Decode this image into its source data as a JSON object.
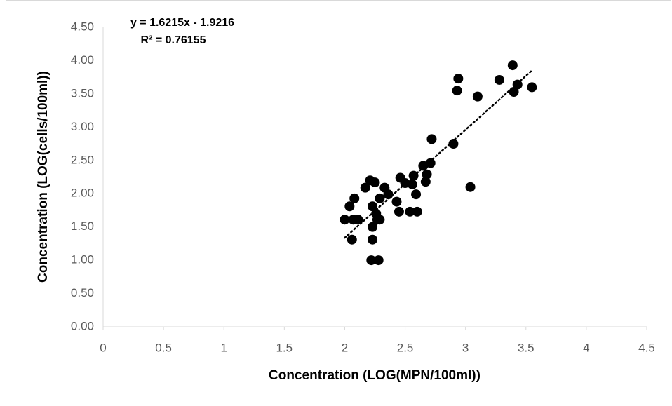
{
  "chart_data": {
    "type": "scatter",
    "x_label": "Concentration (LOG(MPN/100ml))",
    "y_label": "Concentration (LOG(cells/100ml))",
    "trendline": {
      "equation": "y = 1.6215x - 1.9216",
      "r_squared": "R² = 0.76155"
    },
    "color": "#000000",
    "x": [
      2.0,
      2.04,
      2.07,
      2.06,
      2.08,
      2.11,
      2.17,
      2.21,
      2.22,
      2.23,
      2.23,
      2.23,
      2.25,
      2.26,
      2.27,
      2.28,
      2.29,
      2.29,
      2.33,
      2.36,
      2.43,
      2.45,
      2.46,
      2.5,
      2.54,
      2.56,
      2.57,
      2.59,
      2.6,
      2.65,
      2.67,
      2.68,
      2.71,
      2.72,
      2.9,
      2.93,
      2.94,
      3.04,
      3.1,
      3.28,
      3.39,
      3.4,
      3.43,
      3.55
    ],
    "values": [
      1.61,
      1.81,
      1.61,
      1.31,
      1.93,
      1.61,
      2.09,
      2.2,
      1.0,
      1.31,
      1.5,
      1.81,
      2.17,
      1.7,
      1.61,
      1.0,
      1.61,
      1.93,
      2.09,
      1.99,
      1.88,
      1.73,
      2.24,
      2.16,
      1.73,
      2.14,
      2.27,
      1.99,
      1.73,
      2.42,
      2.18,
      2.29,
      2.46,
      2.82,
      2.75,
      3.55,
      3.73,
      2.1,
      3.46,
      3.71,
      3.93,
      3.53,
      3.64,
      3.6
    ],
    "xlim": [
      0,
      4.5
    ],
    "ylim": [
      0,
      4.5
    ],
    "xticks": [
      0,
      0.5,
      1,
      1.5,
      2,
      2.5,
      3,
      3.5,
      4,
      4.5
    ],
    "yticks": [
      {
        "value": 0,
        "label": "0.00"
      },
      {
        "value": 0.5,
        "label": "0.50"
      },
      {
        "value": 1,
        "label": "1.00"
      },
      {
        "value": 1.5,
        "label": "1.50"
      },
      {
        "value": 2,
        "label": "2.00"
      },
      {
        "value": 2.5,
        "label": "2.50"
      },
      {
        "value": 3,
        "label": "3.00"
      },
      {
        "value": 3.5,
        "label": "3.50"
      },
      {
        "value": 4,
        "label": "4.00"
      },
      {
        "value": 4.5,
        "label": "4.50"
      }
    ]
  }
}
